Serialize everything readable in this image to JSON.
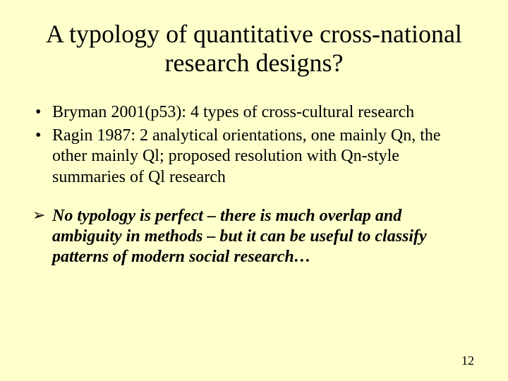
{
  "slide": {
    "background_color": "#ffffcc",
    "text_color": "#000000",
    "font_family": "Times New Roman",
    "title": {
      "text": "A typology of quantitative cross-national research designs?",
      "fontsize": 36,
      "align": "center"
    },
    "bullets": [
      {
        "text": "Bryman 2001(p53): 4 types of cross-cultural research"
      },
      {
        "text": "Ragin 1987: 2 analytical orientations, one mainly Qn, the other mainly Ql; proposed resolution with Qn-style summaries of Ql research"
      }
    ],
    "arrow_bullets": [
      {
        "text": "No typology is perfect – there is much overlap and ambiguity in methods – but it can be useful to classify patterns of modern social research…"
      }
    ],
    "bullet_fontsize": 24,
    "arrow_fontsize": 24,
    "arrow_italic": true,
    "arrow_bold": true,
    "page_number": "12",
    "page_number_fontsize": 18
  }
}
